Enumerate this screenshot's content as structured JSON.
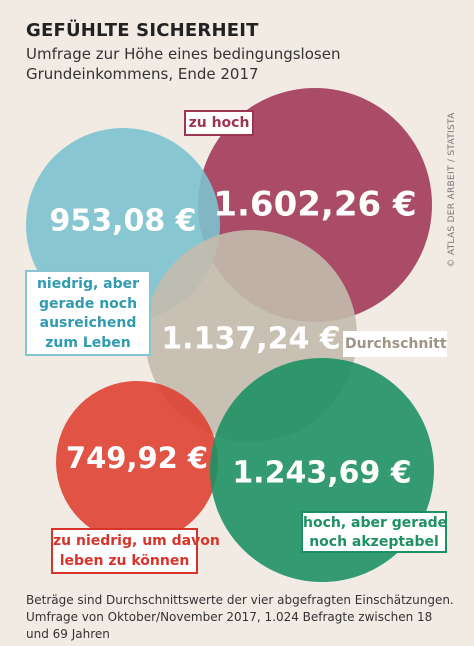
{
  "header": {
    "title": "GEFÜHLTE SICHERHEIT",
    "subtitle": "Umfrage zur Höhe eines bedingungslosen Grundeinkommens, Ende 2017"
  },
  "credit": "© ATLAS DER ARBEIT / STATISTA",
  "chart_data": {
    "type": "bubble",
    "unit": "€",
    "series": [
      {
        "name": "zu hoch",
        "value": 1602.26,
        "value_label": "1.602,26 €",
        "label_lines": [
          "zu hoch"
        ],
        "color": "#a23a5a"
      },
      {
        "name": "niedrig, aber gerade noch ausreichend zum Leben",
        "value": 953.08,
        "value_label": "953,08 €",
        "label_lines": [
          "niedrig, aber",
          "gerade noch",
          "ausreichend",
          "zum Leben"
        ],
        "color": "#7cc3cf"
      },
      {
        "name": "Durchschnitt",
        "value": 1137.24,
        "value_label": "1.137,24 €",
        "label_lines": [
          "Durchschnitt"
        ],
        "color": "#c3bbad"
      },
      {
        "name": "zu niedrig, um davon leben zu können",
        "value": 749.92,
        "value_label": "749,92 €",
        "label_lines": [
          "zu niedrig, um davon",
          "leben zu können"
        ],
        "color": "#de4333"
      },
      {
        "name": "hoch, aber gerade noch akzeptabel",
        "value": 1243.69,
        "value_label": "1.243,69 €",
        "label_lines": [
          "hoch, aber gerade",
          "noch akzeptabel"
        ],
        "color": "#1e9164"
      }
    ]
  },
  "footnote": "Beträge sind Durchschnittswerte der vier abgefragten Einschätzungen. Umfrage von Oktober/November 2017, 1.024 Befragte zwischen 18 und 69 Jahren"
}
